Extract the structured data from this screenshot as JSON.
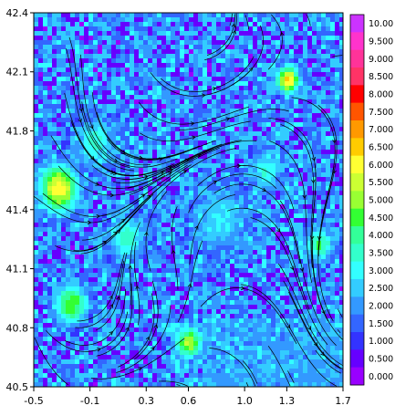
{
  "chart_data": {
    "type": "heatmap",
    "title": "",
    "xlabel": "",
    "ylabel": "",
    "x_ticks": [
      "-0.5",
      "-0.1",
      "0.3",
      "0.6",
      "1.0",
      "1.3",
      "1.7"
    ],
    "x_tick_values": [
      -0.5,
      -0.1,
      0.3,
      0.6,
      1.0,
      1.3,
      1.7
    ],
    "y_ticks": [
      "42.4",
      "42.1",
      "41.8",
      "41.4",
      "41.1",
      "40.8",
      "40.5"
    ],
    "y_tick_values": [
      42.4,
      42.1,
      41.8,
      41.4,
      41.1,
      40.8,
      40.5
    ],
    "xlim": [
      -0.5,
      1.7
    ],
    "ylim": [
      40.5,
      42.4
    ],
    "overlay": "streamlines",
    "colorbar": {
      "position": "right",
      "labels": [
        "10.00",
        "9.500",
        "9.000",
        "8.500",
        "8.000",
        "7.500",
        "7.000",
        "6.500",
        "6.000",
        "5.500",
        "5.000",
        "4.500",
        "4.000",
        "3.500",
        "3.000",
        "2.500",
        "2.000",
        "1.500",
        "1.000",
        "0.500",
        "0.000"
      ],
      "colors": [
        "#cc33ff",
        "#ff33cc",
        "#ff3399",
        "#ff3366",
        "#ff0000",
        "#ff5500",
        "#ff9900",
        "#ffcc00",
        "#ffff33",
        "#ccff33",
        "#99ff33",
        "#33ff33",
        "#33ff99",
        "#33ffcc",
        "#33ffff",
        "#33ccff",
        "#3399ff",
        "#3366ff",
        "#3333ff",
        "#6600ff",
        "#9900ff"
      ]
    }
  }
}
